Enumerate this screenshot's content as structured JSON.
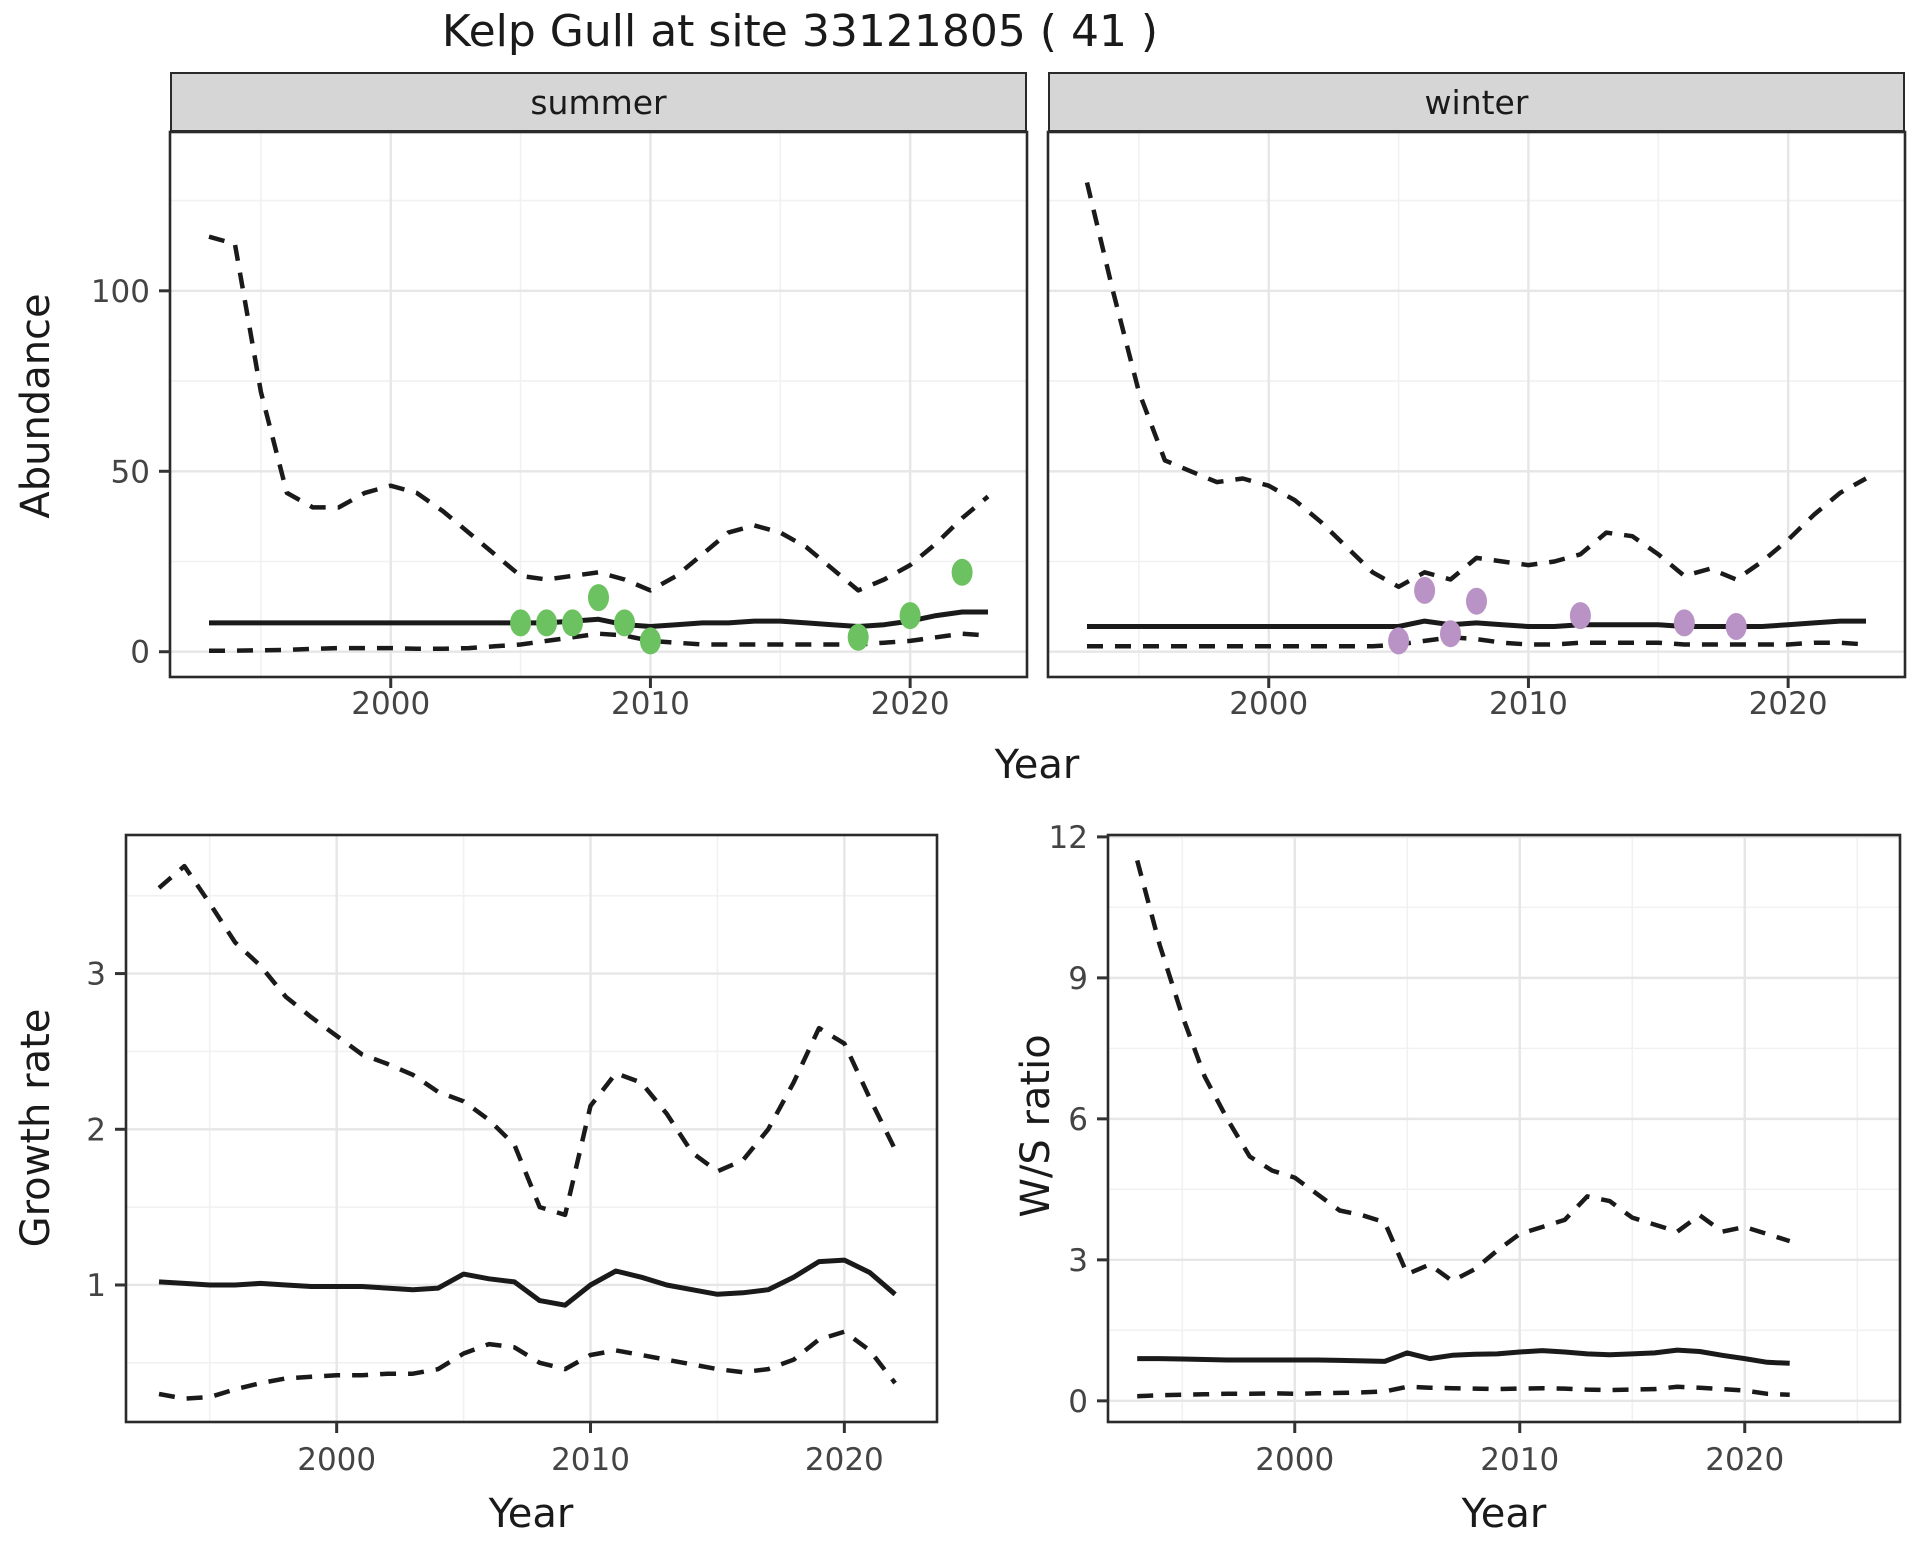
{
  "title": "Kelp Gull at site 33121805 ( 41 )",
  "axis_titles": {
    "abundance": "Abundance",
    "growth_rate": "Growth rate",
    "ws_ratio": "W/S ratio",
    "year": "Year"
  },
  "facets": {
    "summer": "summer",
    "winter": "winter"
  },
  "colors": {
    "summer_points": "#6cc160",
    "winter_points": "#b992c6",
    "line": "#1a1a1a",
    "strip_fill": "#d6d6d6",
    "panel_border": "#2a2a2a",
    "grid_major": "#e6e6e6",
    "grid_minor": "#f1f1f1",
    "tick_label": "#444444"
  },
  "chart_data": [
    {
      "id": "abundance-summer",
      "type": "line",
      "facet_label": "summer",
      "ylabel": "Abundance",
      "xlabel": "Year",
      "xlim": [
        1991.5,
        2024.5
      ],
      "ylim": [
        -7,
        144
      ],
      "x_ticks": [
        2000,
        2010,
        2020
      ],
      "x_minor": [
        1995,
        2005,
        2015
      ],
      "y_ticks": [
        0,
        50,
        100
      ],
      "y_minor": [
        25,
        75,
        125
      ],
      "x": [
        1993,
        1994,
        1995,
        1996,
        1997,
        1998,
        1999,
        2000,
        2001,
        2002,
        2003,
        2004,
        2005,
        2006,
        2007,
        2008,
        2009,
        2010,
        2011,
        2012,
        2013,
        2014,
        2015,
        2016,
        2017,
        2018,
        2019,
        2020,
        2021,
        2022,
        2023
      ],
      "series": [
        {
          "name": "upper-ci",
          "style": "dashed",
          "y": [
            115,
            113,
            72,
            44,
            40,
            40,
            44,
            46,
            44,
            39,
            33,
            27,
            21,
            20,
            21,
            22,
            20,
            17,
            21,
            27,
            33,
            35,
            33,
            29,
            23,
            17,
            20,
            24,
            30,
            37,
            43
          ]
        },
        {
          "name": "median",
          "style": "solid",
          "y": [
            8,
            8,
            8,
            8,
            8,
            8,
            8,
            8,
            8,
            8,
            8,
            8,
            8,
            8,
            8.5,
            9,
            7.5,
            7,
            7.5,
            8,
            8,
            8.5,
            8.5,
            8,
            7.5,
            7,
            7.5,
            8.5,
            10,
            11,
            11
          ]
        },
        {
          "name": "lower-ci",
          "style": "dashed",
          "y": [
            0.3,
            0.3,
            0.4,
            0.5,
            0.8,
            1,
            1,
            1,
            0.8,
            0.8,
            1,
            1.5,
            2,
            3,
            4,
            5,
            4.5,
            3,
            2.5,
            2,
            2,
            2,
            2,
            2,
            2,
            2,
            2.5,
            3,
            4,
            5,
            4.5
          ]
        }
      ],
      "points": {
        "name": "observed-abundance-summer",
        "color": "#6cc160",
        "x": [
          2005,
          2006,
          2007,
          2008,
          2009,
          2010,
          2018,
          2020,
          2022
        ],
        "y": [
          8,
          8,
          8,
          15,
          8,
          3,
          4,
          10,
          22
        ]
      }
    },
    {
      "id": "abundance-winter",
      "type": "line",
      "facet_label": "winter",
      "ylabel": "Abundance",
      "xlabel": "Year",
      "xlim": [
        1991.5,
        2024.5
      ],
      "ylim": [
        -7,
        144
      ],
      "x_ticks": [
        2000,
        2010,
        2020
      ],
      "x_minor": [
        1995,
        2005,
        2015
      ],
      "y_ticks": [
        0,
        50,
        100
      ],
      "y_minor": [
        25,
        75,
        125
      ],
      "x": [
        1993,
        1994,
        1995,
        1996,
        1997,
        1998,
        1999,
        2000,
        2001,
        2002,
        2003,
        2004,
        2005,
        2006,
        2007,
        2008,
        2009,
        2010,
        2011,
        2012,
        2013,
        2014,
        2015,
        2016,
        2017,
        2018,
        2019,
        2020,
        2021,
        2022,
        2023
      ],
      "series": [
        {
          "name": "upper-ci",
          "style": "dashed",
          "y": [
            130,
            100,
            72,
            53,
            50,
            47,
            48,
            46,
            42,
            36,
            29,
            22,
            18,
            22,
            20,
            26,
            25,
            24,
            25,
            27,
            33,
            32,
            27,
            21,
            23,
            20,
            25,
            31,
            38,
            44,
            48
          ]
        },
        {
          "name": "median",
          "style": "solid",
          "y": [
            7,
            7,
            7,
            7,
            7,
            7,
            7,
            7,
            7,
            7,
            7,
            7,
            7,
            8.5,
            7.5,
            8,
            7.5,
            7,
            7,
            7.5,
            7.5,
            7.5,
            7.5,
            7,
            7,
            7,
            7,
            7.5,
            8,
            8.5,
            8.5
          ]
        },
        {
          "name": "lower-ci",
          "style": "dashed",
          "y": [
            1.5,
            1.5,
            1.5,
            1.5,
            1.5,
            1.5,
            1.5,
            1.5,
            1.5,
            1.5,
            1.5,
            1.5,
            2,
            3,
            4,
            3.5,
            2.5,
            2,
            2,
            2.5,
            2.5,
            2.5,
            2.5,
            2,
            2,
            2,
            2,
            2,
            2.5,
            2.5,
            2
          ]
        }
      ],
      "points": {
        "name": "observed-abundance-winter",
        "color": "#b992c6",
        "x": [
          2005,
          2006,
          2007,
          2008,
          2012,
          2016,
          2018
        ],
        "y": [
          3,
          17,
          5,
          14,
          10,
          8,
          7
        ]
      }
    },
    {
      "id": "growth-rate",
      "type": "line",
      "facet_label": null,
      "ylabel": "Growth rate",
      "xlabel": "Year",
      "xlim": [
        1991.7,
        2023.65
      ],
      "ylim": [
        0.12,
        3.89
      ],
      "x_ticks": [
        2000,
        2010,
        2020
      ],
      "x_minor": [
        1995,
        2005,
        2015
      ],
      "y_ticks": [
        1,
        2,
        3
      ],
      "y_minor": [
        0.5,
        1.5,
        2.5,
        3.5
      ],
      "x": [
        1993,
        1994,
        1995,
        1996,
        1997,
        1998,
        1999,
        2000,
        2001,
        2002,
        2003,
        2004,
        2005,
        2006,
        2007,
        2008,
        2009,
        2010,
        2011,
        2012,
        2013,
        2014,
        2015,
        2016,
        2017,
        2018,
        2019,
        2020,
        2021,
        2022
      ],
      "series": [
        {
          "name": "upper-ci",
          "style": "dashed",
          "y": [
            3.55,
            3.69,
            3.45,
            3.2,
            3.05,
            2.85,
            2.72,
            2.6,
            2.48,
            2.42,
            2.35,
            2.24,
            2.18,
            2.06,
            1.9,
            1.5,
            1.45,
            2.15,
            2.36,
            2.3,
            2.1,
            1.85,
            1.73,
            1.8,
            2.0,
            2.3,
            2.65,
            2.55,
            2.2,
            1.87
          ]
        },
        {
          "name": "median",
          "style": "solid",
          "y": [
            1.02,
            1.01,
            1.0,
            1.0,
            1.01,
            1.0,
            0.99,
            0.99,
            0.99,
            0.98,
            0.97,
            0.98,
            1.07,
            1.04,
            1.02,
            0.9,
            0.87,
            1.0,
            1.09,
            1.05,
            1.0,
            0.97,
            0.94,
            0.95,
            0.97,
            1.05,
            1.15,
            1.16,
            1.08,
            0.94
          ]
        },
        {
          "name": "lower-ci",
          "style": "dashed",
          "y": [
            0.3,
            0.27,
            0.28,
            0.33,
            0.37,
            0.4,
            0.41,
            0.42,
            0.42,
            0.43,
            0.43,
            0.46,
            0.56,
            0.62,
            0.6,
            0.5,
            0.46,
            0.55,
            0.58,
            0.55,
            0.52,
            0.49,
            0.46,
            0.44,
            0.46,
            0.52,
            0.65,
            0.7,
            0.58,
            0.37
          ]
        }
      ],
      "points": null
    },
    {
      "id": "ws-ratio",
      "type": "line",
      "facet_label": null,
      "ylabel": "W/S ratio",
      "xlabel": "Year",
      "xlim": [
        1991.7,
        2026.9
      ],
      "ylim": [
        -0.45,
        12.04
      ],
      "x_ticks": [
        2000,
        2010,
        2020
      ],
      "x_minor": [
        1995,
        2005,
        2015,
        2025
      ],
      "y_ticks": [
        0,
        3,
        6,
        9,
        12
      ],
      "y_minor": [
        1.5,
        4.5,
        7.5,
        10.5
      ],
      "x": [
        1993,
        1994,
        1995,
        1996,
        1997,
        1998,
        1999,
        2000,
        2001,
        2002,
        2003,
        2004,
        2005,
        2006,
        2007,
        2008,
        2009,
        2010,
        2011,
        2012,
        2013,
        2014,
        2015,
        2016,
        2017,
        2018,
        2019,
        2020,
        2021,
        2022
      ],
      "series": [
        {
          "name": "upper-ci",
          "style": "dashed",
          "y": [
            11.5,
            9.7,
            8.2,
            6.9,
            6.0,
            5.2,
            4.9,
            4.75,
            4.4,
            4.05,
            3.95,
            3.8,
            2.7,
            2.9,
            2.55,
            2.8,
            3.2,
            3.55,
            3.7,
            3.85,
            4.35,
            4.25,
            3.9,
            3.75,
            3.6,
            3.95,
            3.6,
            3.7,
            3.55,
            3.4
          ]
        },
        {
          "name": "median",
          "style": "solid",
          "y": [
            0.9,
            0.9,
            0.89,
            0.88,
            0.87,
            0.87,
            0.87,
            0.87,
            0.87,
            0.86,
            0.85,
            0.84,
            1.02,
            0.9,
            0.97,
            0.99,
            1.0,
            1.04,
            1.07,
            1.04,
            1.0,
            0.98,
            1.0,
            1.02,
            1.08,
            1.05,
            0.97,
            0.9,
            0.82,
            0.8
          ]
        },
        {
          "name": "lower-ci",
          "style": "dashed",
          "y": [
            0.1,
            0.12,
            0.13,
            0.14,
            0.15,
            0.15,
            0.16,
            0.15,
            0.16,
            0.17,
            0.18,
            0.2,
            0.3,
            0.28,
            0.27,
            0.26,
            0.25,
            0.26,
            0.27,
            0.26,
            0.24,
            0.23,
            0.24,
            0.25,
            0.3,
            0.28,
            0.25,
            0.22,
            0.15,
            0.13
          ]
        }
      ],
      "points": null
    }
  ]
}
